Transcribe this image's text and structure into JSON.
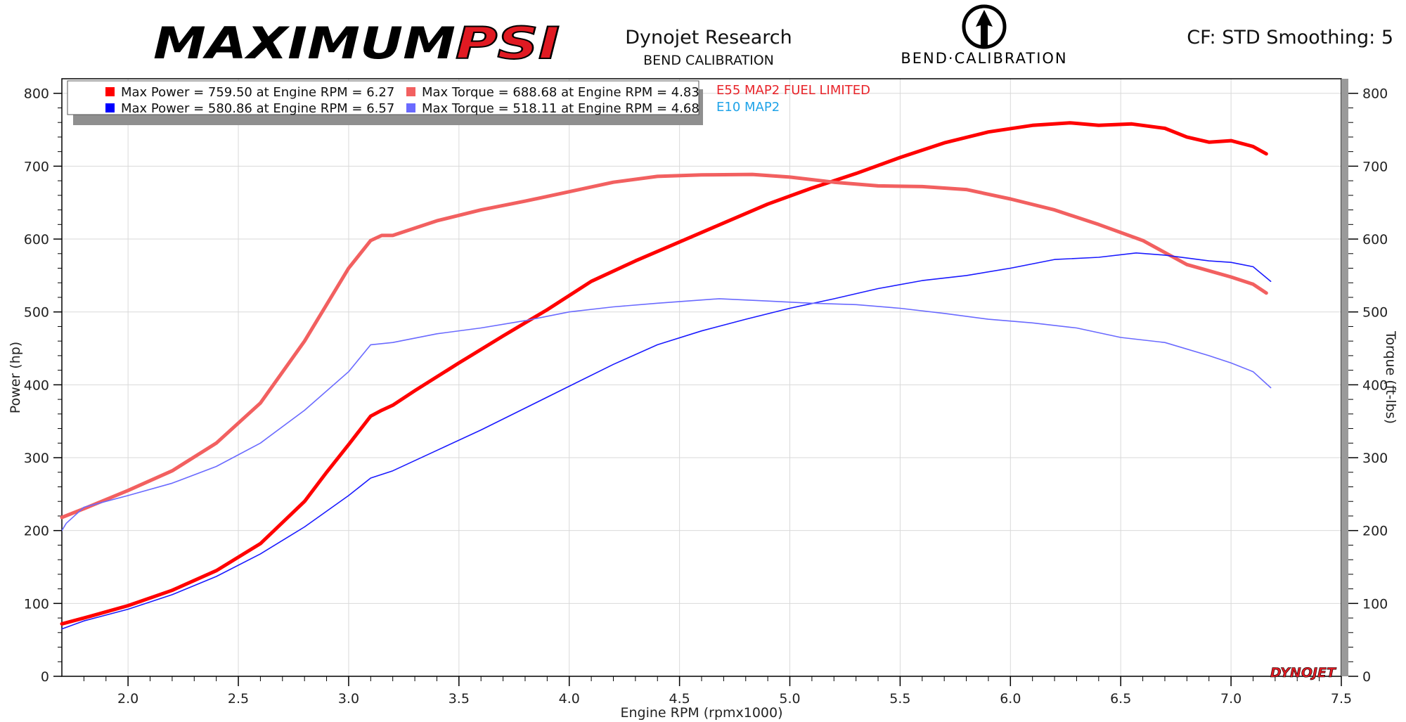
{
  "header": {
    "brand_left": "MAXIMUM",
    "brand_right": "PSI",
    "company": "Dynojet Research",
    "subtitle": "BEND CALIBRATION",
    "logo_text": "BEND·CALIBRATION",
    "settings": "CF: STD Smoothing: 5",
    "watermark": "DYNOJET"
  },
  "legend": {
    "items": [
      {
        "text": "Max Power = 759.50 at Engine RPM = 6.27",
        "color": "#ff0000"
      },
      {
        "text": "Max Torque = 688.68 at Engine RPM = 4.83",
        "color": "#f26060"
      },
      {
        "text": "Max Power = 580.86 at Engine RPM = 6.57",
        "color": "#0000ff"
      },
      {
        "text": "Max Torque = 518.11 at Engine RPM = 4.68",
        "color": "#6a6aff"
      }
    ],
    "runs": [
      {
        "text": "E55 MAP2 FUEL LIMITED",
        "color": "#e8242a"
      },
      {
        "text": "E10 MAP2",
        "color": "#1fa3e8"
      }
    ]
  },
  "chart_data": {
    "type": "line",
    "xlabel": "Engine RPM (rpmx1000)",
    "ylabel": "Power (hp)",
    "y2label": "Torque (ft-lbs)",
    "xlim": [
      1.7,
      7.5
    ],
    "ylim": [
      0,
      820
    ],
    "y2lim": [
      0,
      820
    ],
    "xticks": [
      "2.0",
      "2.5",
      "3.0",
      "3.5",
      "4.0",
      "4.5",
      "5.0",
      "5.5",
      "6.0",
      "6.5",
      "7.0",
      "7.5"
    ],
    "yticks": [
      "0",
      "100",
      "200",
      "300",
      "400",
      "500",
      "600",
      "700",
      "800"
    ],
    "grid": true,
    "series": [
      {
        "axis": "left",
        "color": "#ff0000",
        "width": 5,
        "x": [
          1.7,
          1.8,
          2.0,
          2.2,
          2.4,
          2.6,
          2.8,
          2.9,
          3.0,
          3.1,
          3.15,
          3.2,
          3.3,
          3.5,
          3.7,
          3.9,
          4.1,
          4.3,
          4.5,
          4.7,
          4.9,
          5.1,
          5.3,
          5.5,
          5.7,
          5.9,
          6.1,
          6.27,
          6.4,
          6.55,
          6.7,
          6.8,
          6.9,
          7.0,
          7.1,
          7.16
        ],
        "y": [
          72,
          80,
          97,
          118,
          145,
          182,
          240,
          280,
          318,
          357,
          365,
          372,
          392,
          430,
          467,
          503,
          542,
          570,
          596,
          622,
          648,
          670,
          690,
          712,
          732,
          747,
          756,
          759.5,
          756,
          758,
          752,
          740,
          733,
          735,
          727,
          717
        ]
      },
      {
        "axis": "right",
        "color": "#f26060",
        "width": 5,
        "x": [
          1.7,
          1.8,
          2.0,
          2.2,
          2.4,
          2.6,
          2.8,
          2.9,
          3.0,
          3.1,
          3.15,
          3.2,
          3.4,
          3.6,
          3.8,
          4.0,
          4.2,
          4.4,
          4.6,
          4.83,
          5.0,
          5.2,
          5.4,
          5.6,
          5.8,
          6.0,
          6.2,
          6.4,
          6.6,
          6.8,
          7.0,
          7.1,
          7.16
        ],
        "y": [
          218,
          230,
          255,
          282,
          320,
          375,
          460,
          510,
          560,
          598,
          605,
          605,
          625,
          640,
          652,
          665,
          678,
          686,
          688,
          688.7,
          685,
          678,
          673,
          672,
          668,
          655,
          640,
          620,
          598,
          565,
          548,
          538,
          526
        ]
      },
      {
        "axis": "left",
        "color": "#1a1aff",
        "width": 1.6,
        "x": [
          1.7,
          1.8,
          2.0,
          2.2,
          2.4,
          2.6,
          2.8,
          3.0,
          3.1,
          3.2,
          3.4,
          3.6,
          3.8,
          4.0,
          4.2,
          4.4,
          4.6,
          4.8,
          5.0,
          5.2,
          5.4,
          5.6,
          5.8,
          6.0,
          6.2,
          6.4,
          6.57,
          6.7,
          6.9,
          7.0,
          7.1,
          7.18
        ],
        "y": [
          65,
          76,
          92,
          112,
          137,
          168,
          205,
          248,
          272,
          282,
          310,
          338,
          368,
          398,
          428,
          455,
          474,
          490,
          505,
          518,
          532,
          543,
          550,
          560,
          572,
          575,
          580.9,
          578,
          570,
          568,
          562,
          542
        ]
      },
      {
        "axis": "right",
        "color": "#6a6aff",
        "width": 1.6,
        "x": [
          1.7,
          1.72,
          1.8,
          2.0,
          2.2,
          2.4,
          2.6,
          2.8,
          3.0,
          3.1,
          3.2,
          3.4,
          3.6,
          3.8,
          4.0,
          4.2,
          4.4,
          4.68,
          4.9,
          5.1,
          5.3,
          5.5,
          5.7,
          5.9,
          6.1,
          6.3,
          6.5,
          6.7,
          6.9,
          7.0,
          7.1,
          7.18
        ],
        "y": [
          200,
          210,
          232,
          248,
          265,
          288,
          320,
          365,
          418,
          455,
          458,
          470,
          478,
          488,
          500,
          507,
          512,
          518.1,
          515,
          512,
          510,
          505,
          498,
          490,
          485,
          478,
          465,
          458,
          440,
          430,
          418,
          396
        ]
      }
    ]
  }
}
